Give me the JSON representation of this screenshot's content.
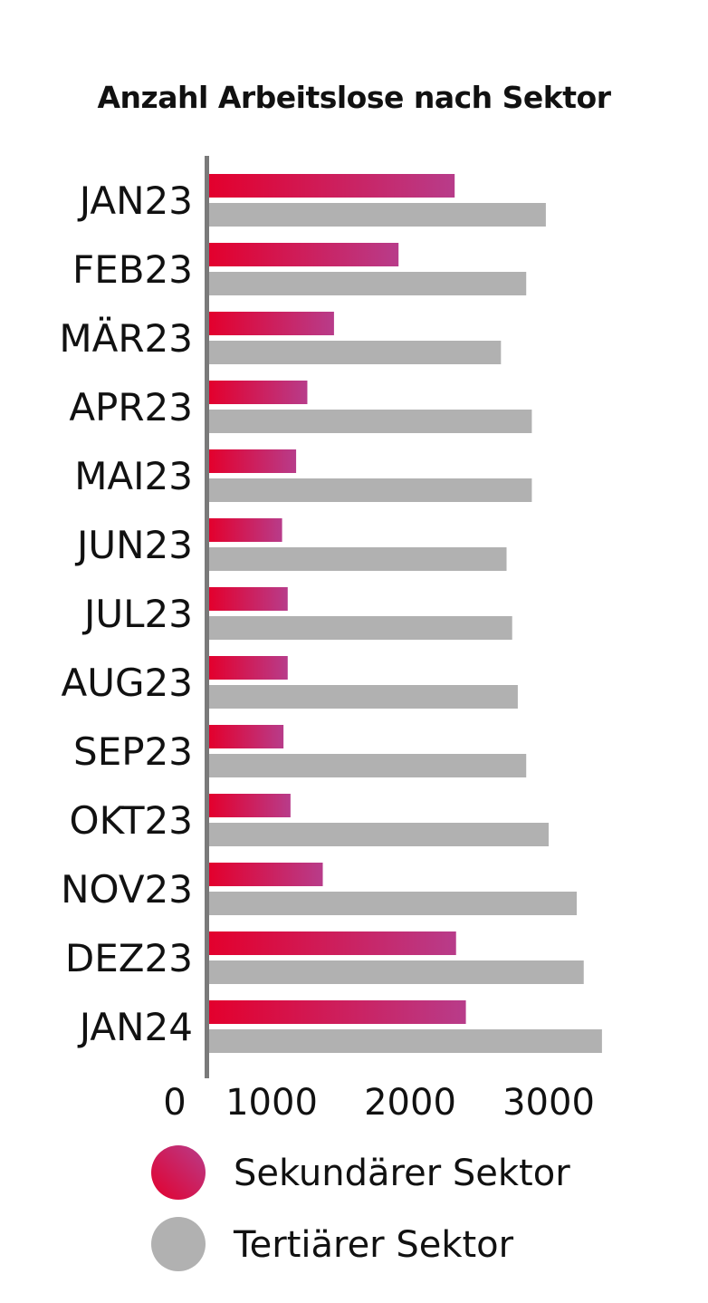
{
  "chart_data": {
    "type": "bar",
    "orientation": "horizontal",
    "title": "Anzahl Arbeitslose nach Sektor",
    "categories": [
      "JAN23",
      "FEB23",
      "MÄR23",
      "APR23",
      "MAI23",
      "JUN23",
      "JUL23",
      "AUG23",
      "SEP23",
      "OKT23",
      "NOV23",
      "DEZ23",
      "JAN24"
    ],
    "series": [
      {
        "name": "Sekundärer Sektor",
        "color_start": "#e3002d",
        "color_end": "#b83c8a",
        "values": [
          1750,
          1350,
          890,
          700,
          620,
          520,
          560,
          560,
          530,
          580,
          810,
          1760,
          1830
        ]
      },
      {
        "name": "Tertiärer Sektor",
        "color": "#b1b1b1",
        "values": [
          2400,
          2260,
          2080,
          2300,
          2300,
          2120,
          2160,
          2200,
          2260,
          2420,
          2620,
          2670,
          2800
        ]
      }
    ],
    "xlim": [
      0,
      3000
    ],
    "xticks": [
      "0",
      "1000",
      "2000",
      "3000"
    ],
    "grid": false,
    "legend_position": "bottom"
  }
}
